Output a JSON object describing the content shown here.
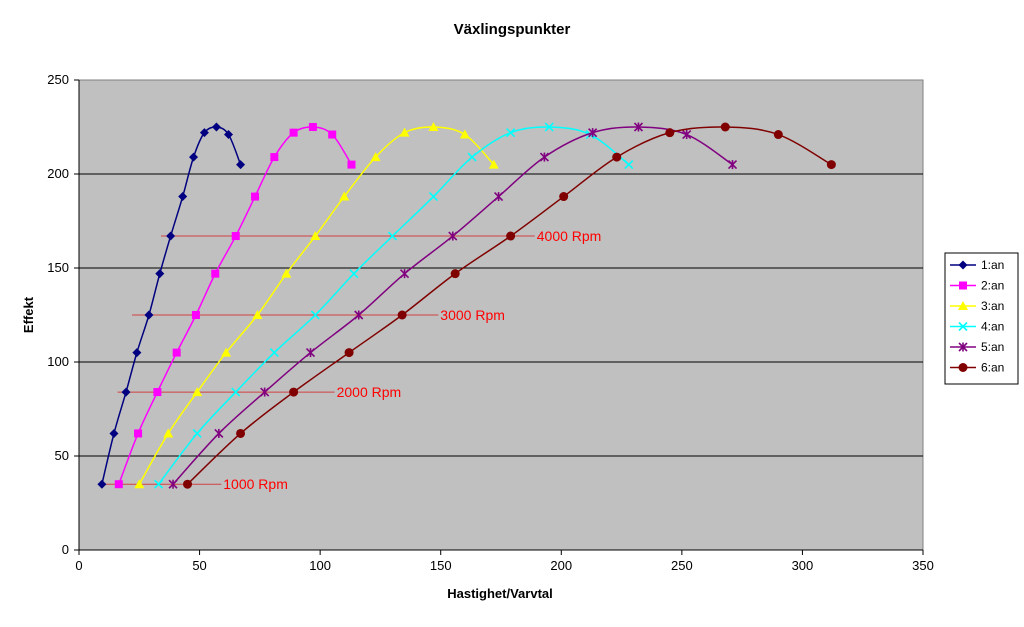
{
  "chart_data": {
    "type": "line",
    "title": "Växlingspunkter",
    "xlabel": "Hastighet/Varvtal",
    "ylabel": "Effekt",
    "xlim": [
      0,
      350
    ],
    "ylim": [
      0,
      250
    ],
    "xticks": [
      "0",
      "50",
      "100",
      "150",
      "200",
      "250",
      "300",
      "350"
    ],
    "yticks": [
      "0",
      "50",
      "100",
      "150",
      "200",
      "250"
    ],
    "grid": "horizontal",
    "plot_background": "#C0C0C0",
    "legend_position": "right",
    "series": [
      {
        "name": "1:an",
        "color": "#000080",
        "marker": "diamond",
        "x": [
          9.5,
          14.5,
          19.5,
          24,
          29,
          33.5,
          38,
          43,
          47.5,
          52,
          57,
          62,
          67
        ],
        "y": [
          35,
          62,
          84,
          105,
          125,
          147,
          167,
          188,
          209,
          222,
          225,
          221,
          205
        ]
      },
      {
        "name": "2:an",
        "color": "#FF00FF",
        "marker": "square",
        "x": [
          16.5,
          24.5,
          32.5,
          40.5,
          48.5,
          56.5,
          65,
          73,
          81,
          89,
          97,
          105,
          113
        ],
        "y": [
          35,
          62,
          84,
          105,
          125,
          147,
          167,
          188,
          209,
          222,
          225,
          221,
          205
        ]
      },
      {
        "name": "3:an",
        "color": "#FFFF00",
        "marker": "triangle",
        "x": [
          25,
          37,
          49,
          61,
          74,
          86,
          98,
          110,
          123,
          135,
          147,
          160,
          172
        ],
        "y": [
          35,
          62,
          84,
          105,
          125,
          147,
          167,
          188,
          209,
          222,
          225,
          221,
          205
        ]
      },
      {
        "name": "4:an",
        "color": "#00FFFF",
        "marker": "x",
        "x": [
          33,
          49,
          65,
          81,
          98,
          114,
          130,
          147,
          163,
          179,
          195,
          212,
          228
        ],
        "y": [
          35,
          62,
          84,
          105,
          125,
          147,
          167,
          188,
          209,
          222,
          225,
          221,
          205
        ]
      },
      {
        "name": "5:an",
        "color": "#800080",
        "marker": "star",
        "x": [
          39,
          58,
          77,
          96,
          116,
          135,
          155,
          174,
          193,
          213,
          232,
          252,
          271
        ],
        "y": [
          35,
          62,
          84,
          105,
          125,
          147,
          167,
          188,
          209,
          222,
          225,
          221,
          205
        ]
      },
      {
        "name": "6:an",
        "color": "#800000",
        "marker": "circle",
        "x": [
          45,
          67,
          89,
          112,
          134,
          156,
          179,
          201,
          223,
          245,
          268,
          290,
          312
        ],
        "y": [
          35,
          62,
          84,
          105,
          125,
          147,
          167,
          188,
          209,
          222,
          225,
          221,
          205
        ]
      }
    ],
    "annotations": [
      {
        "text": "1000 Rpm",
        "y": 35,
        "x_start": 9.5,
        "x_end": 59,
        "color": "#FF0000",
        "line_color": "#D04040"
      },
      {
        "text": "2000 Rpm",
        "y": 84,
        "x_start": 16,
        "x_end": 106,
        "color": "#FF0000",
        "line_color": "#D04040"
      },
      {
        "text": "3000 Rpm",
        "y": 125,
        "x_start": 22,
        "x_end": 149,
        "color": "#FF0000",
        "line_color": "#D04040"
      },
      {
        "text": "4000 Rpm",
        "y": 167,
        "x_start": 34,
        "x_end": 189,
        "color": "#FF0000",
        "line_color": "#D04040"
      }
    ]
  }
}
